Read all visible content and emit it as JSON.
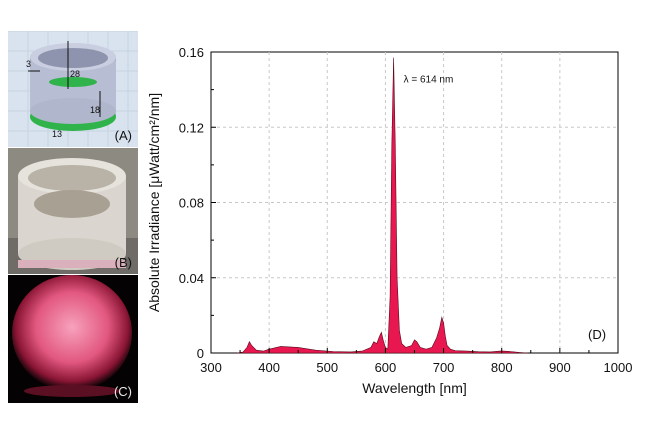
{
  "panels": {
    "a": {
      "label": "(A)",
      "dims": {
        "wall": "3",
        "height": "28",
        "inner": "18",
        "base": "13"
      }
    },
    "b": {
      "label": "(B)"
    },
    "c": {
      "label": "(C)"
    }
  },
  "chart_data": {
    "type": "area",
    "panel_label": "(D)",
    "xlabel": "Wavelength [nm]",
    "ylabel": "Absolute Irradiance [μWatt/cm²/nm]",
    "xlim": [
      300,
      1000
    ],
    "ylim": [
      0,
      0.16
    ],
    "xticks": [
      300,
      400,
      500,
      600,
      700,
      800,
      900,
      1000
    ],
    "yticks": [
      0,
      0.04,
      0.08,
      0.12,
      0.16
    ],
    "ytick_labels": [
      "0",
      "0.04",
      "0.08",
      "0.12",
      "0.16"
    ],
    "grid": true,
    "fill_color": "#e8174f",
    "annotation": {
      "text": "λ = 614 nm",
      "x": 614,
      "y": 0.156
    },
    "series": [
      {
        "x": [
          345,
          355,
          362,
          366,
          370,
          378,
          390,
          400,
          420,
          450,
          480,
          510,
          540,
          560,
          575,
          580,
          585,
          590,
          593,
          596,
          600,
          604,
          608,
          611,
          614,
          617,
          620,
          624,
          628,
          635,
          645,
          650,
          654,
          660,
          670,
          680,
          688,
          693,
          697,
          700,
          703,
          706,
          712,
          720,
          740,
          760,
          780,
          800,
          815,
          830,
          845
        ],
        "y": [
          0,
          0.0005,
          0.003,
          0.006,
          0.004,
          0.0015,
          0.001,
          0.002,
          0.0035,
          0.003,
          0.0015,
          0.0008,
          0.0006,
          0.001,
          0.003,
          0.006,
          0.005,
          0.009,
          0.011,
          0.007,
          0.003,
          0.002,
          0.03,
          0.11,
          0.157,
          0.11,
          0.04,
          0.012,
          0.005,
          0.003,
          0.004,
          0.007,
          0.006,
          0.003,
          0.002,
          0.003,
          0.008,
          0.013,
          0.019,
          0.016,
          0.009,
          0.004,
          0.002,
          0.0012,
          0.001,
          0.0007,
          0.0006,
          0.0011,
          0.0008,
          0.0003,
          0
        ]
      }
    ]
  }
}
